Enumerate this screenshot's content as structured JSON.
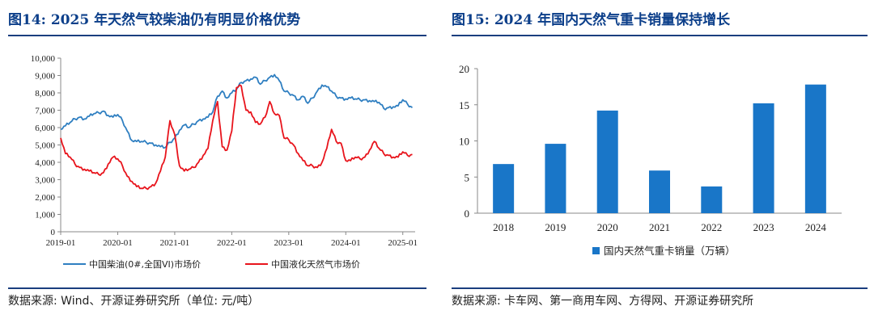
{
  "left": {
    "title": "图14:  2025 年天然气较柴油仍有明显价格优势",
    "source": "数据来源:  Wind、开源证券研究所（单位:  元/吨）"
  },
  "right": {
    "title": "图15:  2024 年国内天然气重卡销量保持增长",
    "source": "数据来源:  卡车网、第一商用车网、方得网、开源证券研究所"
  },
  "colors": {
    "accent": "#0c3f8a",
    "diesel": "#2f7fc1",
    "lng": "#e8141c",
    "bar": "#1976c8"
  },
  "chart_data": [
    {
      "type": "line",
      "title": "",
      "xlabel": "",
      "ylabel": "",
      "ylim": [
        0,
        10000
      ],
      "yticks": [
        "0",
        "1,000",
        "2,000",
        "3,000",
        "4,000",
        "5,000",
        "6,000",
        "7,000",
        "8,000",
        "9,000",
        "10,000"
      ],
      "xticks": [
        "2019-01",
        "2020-01",
        "2021-01",
        "2022-01",
        "2023-01",
        "2024-01",
        "2025-01"
      ],
      "grid": false,
      "legend_position": "bottom",
      "series": [
        {
          "name": "中国柴油(0#,全国VI)市场价",
          "color": "#2f7fc1",
          "points": [
            [
              "2019-01",
              5900
            ],
            [
              "2019-02",
              6100
            ],
            [
              "2019-03",
              6300
            ],
            [
              "2019-04",
              6500
            ],
            [
              "2019-05",
              6600
            ],
            [
              "2019-06",
              6500
            ],
            [
              "2019-07",
              6650
            ],
            [
              "2019-08",
              6800
            ],
            [
              "2019-09",
              6850
            ],
            [
              "2019-10",
              6950
            ],
            [
              "2019-11",
              6700
            ],
            [
              "2019-12",
              6600
            ],
            [
              "2020-01",
              6750
            ],
            [
              "2020-02",
              6400
            ],
            [
              "2020-03",
              5800
            ],
            [
              "2020-04",
              5250
            ],
            [
              "2020-05",
              5200
            ],
            [
              "2020-06",
              5200
            ],
            [
              "2020-07",
              5150
            ],
            [
              "2020-08",
              5100
            ],
            [
              "2020-09",
              5000
            ],
            [
              "2020-10",
              4900
            ],
            [
              "2020-11",
              4850
            ],
            [
              "2020-12",
              5150
            ],
            [
              "2021-01",
              5400
            ],
            [
              "2021-02",
              5850
            ],
            [
              "2021-03",
              6150
            ],
            [
              "2021-04",
              6000
            ],
            [
              "2021-05",
              6200
            ],
            [
              "2021-06",
              6400
            ],
            [
              "2021-07",
              6500
            ],
            [
              "2021-08",
              6600
            ],
            [
              "2021-09",
              6900
            ],
            [
              "2021-10",
              7800
            ],
            [
              "2021-11",
              8100
            ],
            [
              "2021-12",
              7700
            ],
            [
              "2022-01",
              8000
            ],
            [
              "2022-02",
              8200
            ],
            [
              "2022-03",
              8600
            ],
            [
              "2022-04",
              8700
            ],
            [
              "2022-05",
              8800
            ],
            [
              "2022-06",
              8900
            ],
            [
              "2022-07",
              8500
            ],
            [
              "2022-08",
              8700
            ],
            [
              "2022-09",
              8900
            ],
            [
              "2022-10",
              9050
            ],
            [
              "2022-11",
              8700
            ],
            [
              "2022-12",
              8100
            ],
            [
              "2023-01",
              8000
            ],
            [
              "2023-02",
              7850
            ],
            [
              "2023-03",
              7600
            ],
            [
              "2023-04",
              7800
            ],
            [
              "2023-05",
              7400
            ],
            [
              "2023-06",
              7700
            ],
            [
              "2023-07",
              8100
            ],
            [
              "2023-08",
              8450
            ],
            [
              "2023-09",
              8350
            ],
            [
              "2023-10",
              8100
            ],
            [
              "2023-11",
              7800
            ],
            [
              "2023-12",
              7700
            ],
            [
              "2024-01",
              7650
            ],
            [
              "2024-02",
              7700
            ],
            [
              "2024-03",
              7650
            ],
            [
              "2024-04",
              7600
            ],
            [
              "2024-05",
              7600
            ],
            [
              "2024-06",
              7550
            ],
            [
              "2024-07",
              7500
            ],
            [
              "2024-08",
              7450
            ],
            [
              "2024-09",
              7100
            ],
            [
              "2024-10",
              7150
            ],
            [
              "2024-11",
              7200
            ],
            [
              "2024-12",
              7250
            ],
            [
              "2025-01",
              7600
            ],
            [
              "2025-02",
              7350
            ],
            [
              "2025-03",
              7150
            ]
          ]
        },
        {
          "name": "中国液化天然气市场价",
          "color": "#e8141c",
          "points": [
            [
              "2019-01",
              5400
            ],
            [
              "2019-02",
              4500
            ],
            [
              "2019-03",
              4300
            ],
            [
              "2019-04",
              3900
            ],
            [
              "2019-05",
              3700
            ],
            [
              "2019-06",
              3600
            ],
            [
              "2019-07",
              3500
            ],
            [
              "2019-08",
              3400
            ],
            [
              "2019-09",
              3300
            ],
            [
              "2019-10",
              3400
            ],
            [
              "2019-11",
              3900
            ],
            [
              "2019-12",
              4300
            ],
            [
              "2020-01",
              4200
            ],
            [
              "2020-02",
              3800
            ],
            [
              "2020-03",
              3200
            ],
            [
              "2020-04",
              2900
            ],
            [
              "2020-05",
              2600
            ],
            [
              "2020-06",
              2500
            ],
            [
              "2020-07",
              2500
            ],
            [
              "2020-08",
              2600
            ],
            [
              "2020-09",
              2800
            ],
            [
              "2020-10",
              3500
            ],
            [
              "2020-11",
              4300
            ],
            [
              "2020-12",
              6400
            ],
            [
              "2021-01",
              5600
            ],
            [
              "2021-02",
              3800
            ],
            [
              "2021-03",
              3500
            ],
            [
              "2021-04",
              3600
            ],
            [
              "2021-05",
              3700
            ],
            [
              "2021-06",
              4000
            ],
            [
              "2021-07",
              4400
            ],
            [
              "2021-08",
              4800
            ],
            [
              "2021-09",
              6400
            ],
            [
              "2021-10",
              7500
            ],
            [
              "2021-11",
              4900
            ],
            [
              "2021-12",
              4700
            ],
            [
              "2022-01",
              5800
            ],
            [
              "2022-02",
              8300
            ],
            [
              "2022-03",
              8400
            ],
            [
              "2022-04",
              7000
            ],
            [
              "2022-05",
              6900
            ],
            [
              "2022-06",
              6300
            ],
            [
              "2022-07",
              6200
            ],
            [
              "2022-08",
              6600
            ],
            [
              "2022-09",
              7500
            ],
            [
              "2022-10",
              6800
            ],
            [
              "2022-11",
              6700
            ],
            [
              "2022-12",
              5400
            ],
            [
              "2023-01",
              5300
            ],
            [
              "2023-02",
              5000
            ],
            [
              "2023-03",
              4500
            ],
            [
              "2023-04",
              4100
            ],
            [
              "2023-05",
              3800
            ],
            [
              "2023-06",
              3800
            ],
            [
              "2023-07",
              3700
            ],
            [
              "2023-08",
              4000
            ],
            [
              "2023-09",
              4800
            ],
            [
              "2023-10",
              5900
            ],
            [
              "2023-11",
              5200
            ],
            [
              "2023-12",
              5100
            ],
            [
              "2024-01",
              4100
            ],
            [
              "2024-02",
              4100
            ],
            [
              "2024-03",
              4300
            ],
            [
              "2024-04",
              4200
            ],
            [
              "2024-05",
              4300
            ],
            [
              "2024-06",
              4700
            ],
            [
              "2024-07",
              5200
            ],
            [
              "2024-08",
              4800
            ],
            [
              "2024-09",
              4500
            ],
            [
              "2024-10",
              4400
            ],
            [
              "2024-11",
              4300
            ],
            [
              "2024-12",
              4300
            ],
            [
              "2025-01",
              4600
            ],
            [
              "2025-02",
              4400
            ],
            [
              "2025-03",
              4450
            ]
          ]
        }
      ]
    },
    {
      "type": "bar",
      "title": "",
      "xlabel": "",
      "ylabel": "",
      "ylim": [
        0,
        20
      ],
      "yticks": [
        "0",
        "5",
        "10",
        "15",
        "20"
      ],
      "grid": false,
      "legend_position": "bottom",
      "categories": [
        "2018",
        "2019",
        "2020",
        "2021",
        "2022",
        "2023",
        "2024"
      ],
      "series": [
        {
          "name": "国内天然气重卡销量（万辆）",
          "color": "#1976c8",
          "values": [
            6.8,
            9.6,
            14.2,
            5.9,
            3.7,
            15.2,
            17.8
          ]
        }
      ]
    }
  ]
}
